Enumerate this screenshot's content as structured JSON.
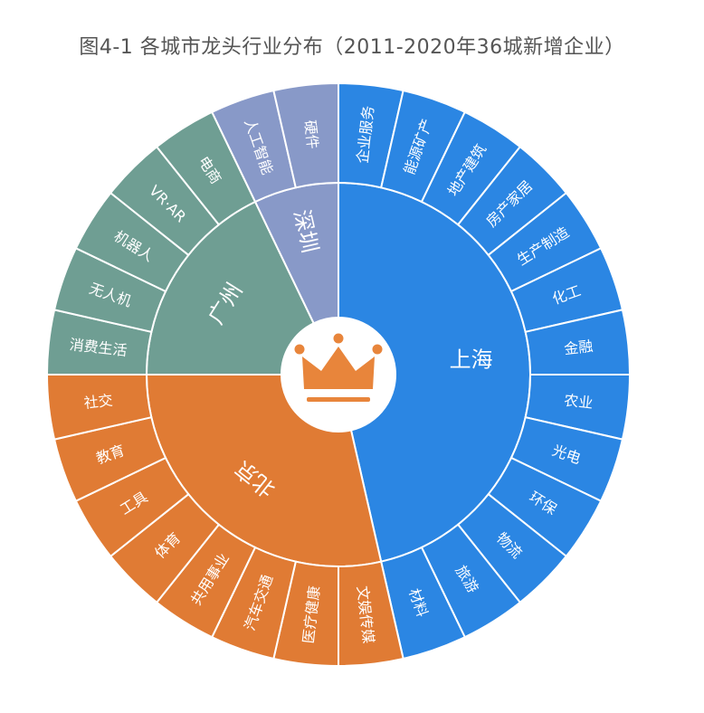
{
  "title": "图4-1  各城市龙头行业分布（2011-2020年36城新增企业）",
  "colors": {
    "上海": "#2b86e3",
    "北京": "#e07b34",
    "广州": "#6f9e93",
    "深圳": "#8899c8",
    "crown": "#e8853b"
  },
  "icons": {
    "center": "crown-icon"
  },
  "chart_data": {
    "type": "sunburst",
    "title": "图4-1  各城市龙头行业分布（2011-2020年36城新增企业）",
    "start_angle_deg": 0,
    "direction": "clockwise",
    "cities": [
      {
        "name": "上海",
        "industries": [
          "企业服务",
          "能源矿产",
          "地产建筑",
          "房产家居",
          "生产制造",
          "化工",
          "金融",
          "农业",
          "光电",
          "环保",
          "物流",
          "旅游",
          "材料"
        ]
      },
      {
        "name": "北京",
        "industries": [
          "文娱传媒",
          "医疗健康",
          "汽车交通",
          "共用事业",
          "体育",
          "工具",
          "教育",
          "社交"
        ]
      },
      {
        "name": "广州",
        "industries": [
          "消费生活",
          "无人机",
          "机器人",
          "VR·AR",
          "电商"
        ]
      },
      {
        "name": "深圳",
        "industries": [
          "人工智能",
          "硬件"
        ]
      }
    ],
    "segment_weight": 1
  }
}
